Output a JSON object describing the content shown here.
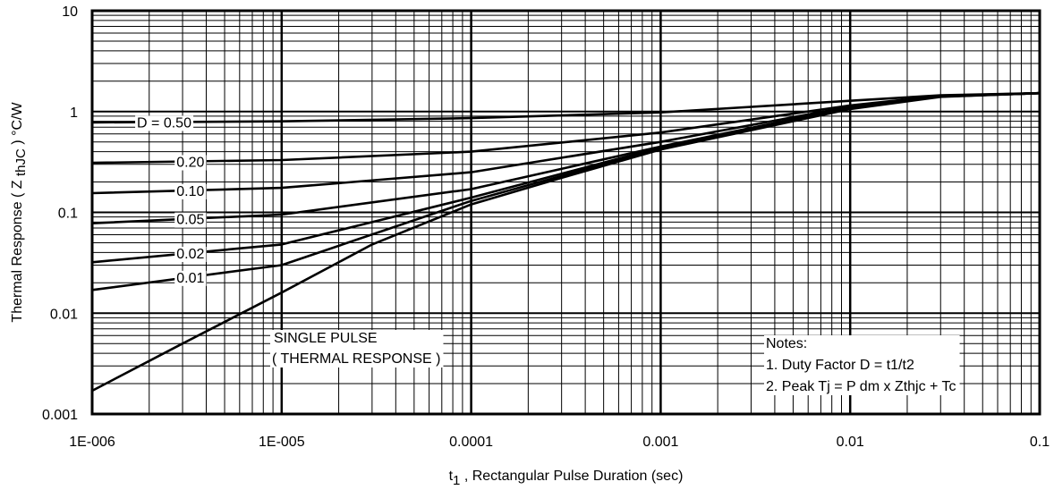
{
  "chart_data": {
    "type": "line",
    "x_scale": "log",
    "y_scale": "log",
    "xlim": [
      1e-06,
      0.1
    ],
    "ylim": [
      0.001,
      10
    ],
    "grid": true,
    "xlabel_prefix": "t",
    "xlabel_sub": "1",
    "xlabel_rest": " , Rectangular Pulse Duration (sec)",
    "ylabel_main": "Thermal Response ( Z ",
    "ylabel_sub": "thJC",
    "ylabel_tail": " ) °C/W",
    "x_ticks": [
      {
        "value": 1e-06,
        "label": "1E-006"
      },
      {
        "value": 1e-05,
        "label": "1E-005"
      },
      {
        "value": 0.0001,
        "label": "0.0001"
      },
      {
        "value": 0.001,
        "label": "0.001"
      },
      {
        "value": 0.01,
        "label": "0.01"
      },
      {
        "value": 0.1,
        "label": "0.1"
      }
    ],
    "y_ticks": [
      {
        "value": 0.001,
        "label": "0.001"
      },
      {
        "value": 0.01,
        "label": "0.01"
      },
      {
        "value": 0.1,
        "label": "0.1"
      },
      {
        "value": 1,
        "label": "1"
      },
      {
        "value": 10,
        "label": "10"
      }
    ],
    "series": [
      {
        "name": "D = 0.50",
        "x": [
          1e-06,
          1e-05,
          0.0001,
          0.001,
          0.01,
          0.03,
          0.1
        ],
        "y": [
          0.78,
          0.8,
          0.86,
          0.98,
          1.28,
          1.45,
          1.52
        ]
      },
      {
        "name": "0.20",
        "x": [
          1e-06,
          1e-05,
          0.0001,
          0.001,
          0.01,
          0.03,
          0.1
        ],
        "y": [
          0.31,
          0.33,
          0.4,
          0.62,
          1.15,
          1.43,
          1.52
        ]
      },
      {
        "name": "0.10",
        "x": [
          1e-06,
          1e-05,
          0.0001,
          0.001,
          0.01,
          0.03,
          0.1
        ],
        "y": [
          0.155,
          0.175,
          0.25,
          0.5,
          1.12,
          1.42,
          1.52
        ]
      },
      {
        "name": "0.05",
        "x": [
          1e-06,
          1e-05,
          0.0001,
          0.001,
          0.01,
          0.03,
          0.1
        ],
        "y": [
          0.078,
          0.095,
          0.17,
          0.45,
          1.1,
          1.42,
          1.52
        ]
      },
      {
        "name": "0.02",
        "x": [
          1e-06,
          1e-05,
          0.0001,
          0.001,
          0.01,
          0.03,
          0.1
        ],
        "y": [
          0.032,
          0.048,
          0.14,
          0.44,
          1.08,
          1.41,
          1.52
        ]
      },
      {
        "name": "0.01",
        "x": [
          1e-06,
          1e-05,
          0.0001,
          0.001,
          0.01,
          0.03,
          0.1
        ],
        "y": [
          0.017,
          0.03,
          0.13,
          0.43,
          1.07,
          1.41,
          1.52
        ]
      },
      {
        "name": "SINGLE PULSE",
        "x": [
          1e-06,
          3e-06,
          1e-05,
          3e-05,
          0.0001,
          0.0003,
          0.001,
          0.01,
          0.03,
          0.1
        ],
        "y": [
          0.0017,
          0.005,
          0.016,
          0.048,
          0.12,
          0.22,
          0.42,
          1.06,
          1.4,
          1.52
        ]
      }
    ],
    "curve_labels": [
      {
        "text": "D = 0.50",
        "series": 0,
        "x": 2.4e-06
      },
      {
        "text": "0.20",
        "series": 1,
        "x": 3.3e-06
      },
      {
        "text": "0.10",
        "series": 2,
        "x": 3.3e-06
      },
      {
        "text": "0.05",
        "series": 3,
        "x": 3.3e-06
      },
      {
        "text": "0.02",
        "series": 4,
        "x": 3.3e-06
      },
      {
        "text": "0.01",
        "series": 5,
        "x": 3.3e-06
      }
    ],
    "annotations": {
      "single_pulse": [
        "SINGLE PULSE",
        "( THERMAL RESPONSE )"
      ],
      "notes": [
        "Notes:",
        "1. Duty Factor D = t1/t2",
        "2. Peak Tj = P dm x Zthjc + Tc"
      ]
    }
  }
}
